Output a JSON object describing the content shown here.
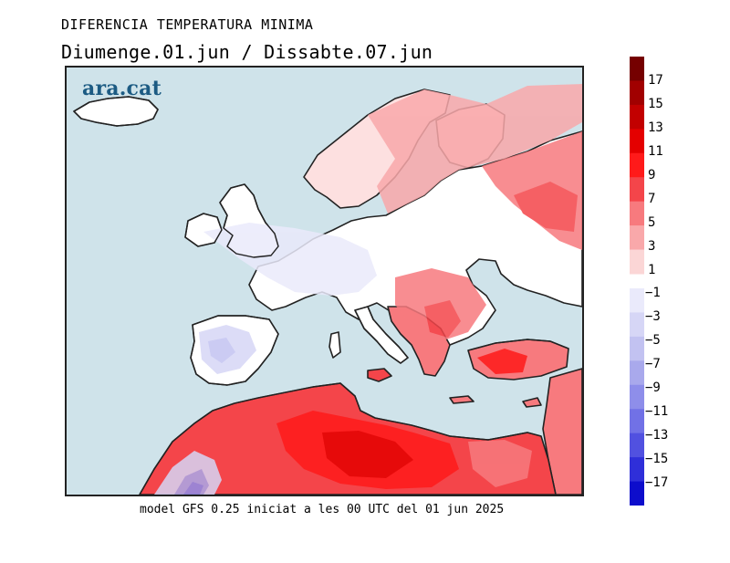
{
  "title": "DIFERENCIA TEMPERATURA MINIMA",
  "subtitle": "Diumenge.01.jun / Dissabte.07.jun",
  "logo_text": "ara.cat",
  "footer": "model GFS 0.25 iniciat a les 00 UTC del 01 jun 2025",
  "colors": {
    "sea": "#cfe3ea",
    "coastline": "#222222",
    "neutral_land": "#ffffff"
  },
  "colorbar": {
    "warm_labels": [
      "17",
      "15",
      "13",
      "11",
      "9",
      "7",
      "5",
      "3",
      "1"
    ],
    "cool_labels": [
      "−1",
      "−3",
      "−5",
      "−7",
      "−9",
      "−11",
      "−13",
      "−15",
      "−17"
    ],
    "warm_colors": [
      "#750000",
      "#a10000",
      "#c20000",
      "#e40000",
      "#ff1a1a",
      "#f4454a",
      "#f77a7e",
      "#f9a8aa",
      "#fbd6d6"
    ],
    "cool_colors": [
      "#eaeafb",
      "#d6d6f6",
      "#c2c2f1",
      "#a9a9ec",
      "#8e8eea",
      "#7171e6",
      "#5151e0",
      "#2f2fd9",
      "#0d0dcc"
    ]
  }
}
